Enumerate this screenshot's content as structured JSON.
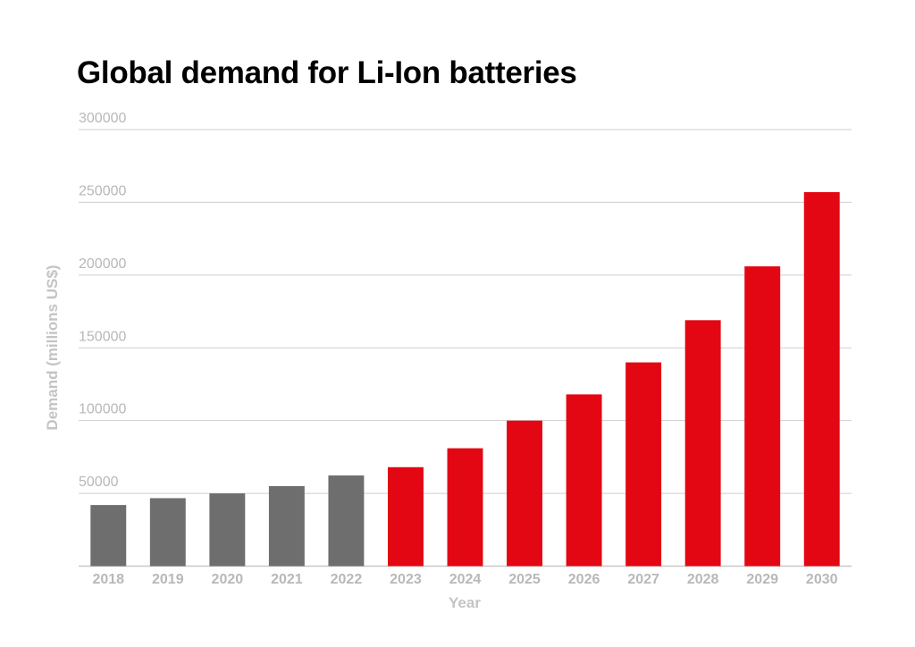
{
  "chart_data": {
    "type": "bar",
    "title": "Global demand for Li-Ion batteries",
    "xlabel": "Year",
    "ylabel": "Demand (millions US$)",
    "categories": [
      "2018",
      "2019",
      "2020",
      "2021",
      "2022",
      "2023",
      "2024",
      "2025",
      "2026",
      "2027",
      "2028",
      "2029",
      "2030"
    ],
    "values": [
      42000,
      46700,
      50000,
      55000,
      62300,
      68000,
      81000,
      100000,
      118000,
      140000,
      169000,
      206000,
      257000
    ],
    "bar_colors": [
      "#6f6e6e",
      "#6f6e6e",
      "#6f6e6e",
      "#6f6e6e",
      "#6f6e6e",
      "#e30613",
      "#e30613",
      "#e30613",
      "#e30613",
      "#e30613",
      "#e30613",
      "#e30613",
      "#e30613"
    ],
    "ylim": [
      0,
      300000
    ],
    "yticks": [
      50000,
      100000,
      150000,
      200000,
      250000,
      300000
    ],
    "ytick_labels": [
      "50000",
      "100000",
      "150000",
      "200000",
      "250000",
      "300000"
    ],
    "grid": true,
    "legend": "none"
  }
}
